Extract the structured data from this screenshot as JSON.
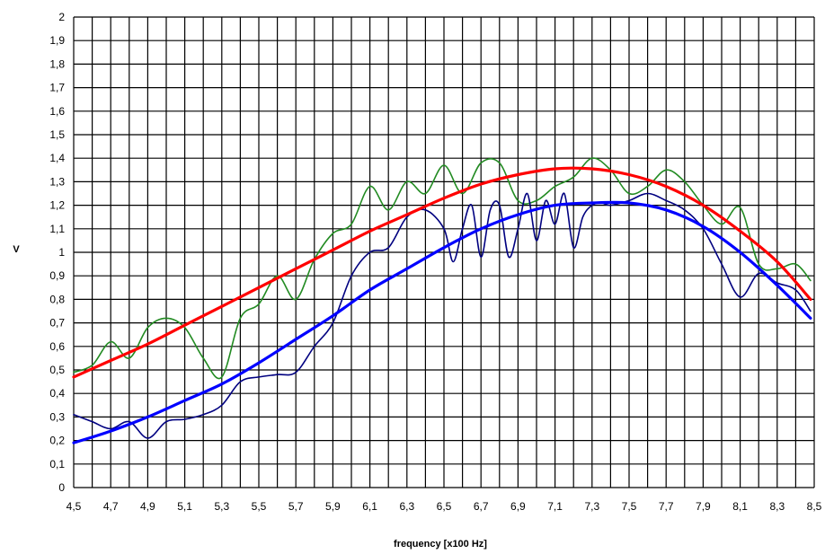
{
  "chart_data": {
    "type": "line",
    "title": "",
    "xlabel": "frequency [x100 Hz]",
    "ylabel": "V",
    "xlim": [
      4.5,
      8.5
    ],
    "ylim": [
      0,
      2
    ],
    "grid": true,
    "legend": "none",
    "x_ticks": [
      "4,5",
      "4,7",
      "4,9",
      "5,1",
      "5,3",
      "5,5",
      "5,7",
      "5,9",
      "6,1",
      "6,3",
      "6,5",
      "6,7",
      "6,9",
      "7,1",
      "7,3",
      "7,5",
      "7,7",
      "7,9",
      "8,1",
      "8,3",
      "8,5"
    ],
    "y_ticks": [
      "0",
      "0,1",
      "0,2",
      "0,3",
      "0,4",
      "0,5",
      "0,6",
      "0,7",
      "0,8",
      "0,9",
      "1",
      "1,1",
      "1,2",
      "1,3",
      "1,4",
      "1,5",
      "1,6",
      "1,7",
      "1,8",
      "1,9",
      "2"
    ],
    "series": [
      {
        "color": "#228B22",
        "width": 1.6,
        "x": [
          4.5,
          4.6,
          4.7,
          4.8,
          4.9,
          5.0,
          5.1,
          5.2,
          5.3,
          5.4,
          5.5,
          5.6,
          5.7,
          5.8,
          5.9,
          6.0,
          6.1,
          6.2,
          6.3,
          6.4,
          6.5,
          6.6,
          6.7,
          6.8,
          6.9,
          7.0,
          7.1,
          7.2,
          7.3,
          7.4,
          7.5,
          7.6,
          7.7,
          7.8,
          7.9,
          8.0,
          8.1,
          8.2,
          8.3,
          8.4,
          8.48
        ],
        "y": [
          0.49,
          0.52,
          0.62,
          0.55,
          0.68,
          0.72,
          0.68,
          0.55,
          0.47,
          0.72,
          0.78,
          0.9,
          0.8,
          0.97,
          1.08,
          1.12,
          1.28,
          1.18,
          1.3,
          1.25,
          1.37,
          1.25,
          1.38,
          1.38,
          1.22,
          1.22,
          1.28,
          1.32,
          1.4,
          1.35,
          1.25,
          1.28,
          1.35,
          1.3,
          1.2,
          1.12,
          1.19,
          0.95,
          0.93,
          0.95,
          0.88
        ]
      },
      {
        "color": "#000080",
        "width": 1.6,
        "x": [
          4.5,
          4.6,
          4.7,
          4.8,
          4.9,
          5.0,
          5.1,
          5.2,
          5.3,
          5.4,
          5.5,
          5.6,
          5.7,
          5.8,
          5.9,
          6.0,
          6.1,
          6.2,
          6.3,
          6.4,
          6.5,
          6.55,
          6.6,
          6.65,
          6.7,
          6.75,
          6.8,
          6.85,
          6.9,
          6.95,
          7.0,
          7.05,
          7.1,
          7.15,
          7.2,
          7.25,
          7.3,
          7.35,
          7.4,
          7.5,
          7.6,
          7.7,
          7.8,
          7.9,
          8.0,
          8.1,
          8.2,
          8.3,
          8.4,
          8.48
        ],
        "y": [
          0.31,
          0.28,
          0.25,
          0.28,
          0.21,
          0.28,
          0.29,
          0.31,
          0.35,
          0.45,
          0.47,
          0.48,
          0.49,
          0.6,
          0.7,
          0.9,
          1.0,
          1.02,
          1.15,
          1.18,
          1.1,
          0.96,
          1.1,
          1.2,
          0.98,
          1.18,
          1.2,
          0.98,
          1.1,
          1.25,
          1.05,
          1.22,
          1.12,
          1.25,
          1.02,
          1.15,
          1.2,
          1.21,
          1.2,
          1.22,
          1.25,
          1.22,
          1.18,
          1.1,
          0.95,
          0.81,
          0.91,
          0.87,
          0.84,
          0.75
        ]
      },
      {
        "color": "#FF0000",
        "width": 3.2,
        "x": [
          4.5,
          4.7,
          4.9,
          5.1,
          5.3,
          5.5,
          5.7,
          5.9,
          6.1,
          6.3,
          6.5,
          6.7,
          6.9,
          7.1,
          7.3,
          7.5,
          7.7,
          7.9,
          8.1,
          8.3,
          8.48
        ],
        "y": [
          0.47,
          0.54,
          0.61,
          0.69,
          0.77,
          0.85,
          0.93,
          1.01,
          1.09,
          1.16,
          1.23,
          1.29,
          1.33,
          1.355,
          1.355,
          1.33,
          1.28,
          1.2,
          1.09,
          0.96,
          0.8
        ]
      },
      {
        "color": "#0000FF",
        "width": 3.2,
        "x": [
          4.5,
          4.7,
          4.9,
          5.1,
          5.3,
          5.5,
          5.7,
          5.9,
          6.1,
          6.3,
          6.5,
          6.7,
          6.9,
          7.1,
          7.3,
          7.5,
          7.7,
          7.9,
          8.1,
          8.3,
          8.48
        ],
        "y": [
          0.19,
          0.24,
          0.3,
          0.37,
          0.44,
          0.53,
          0.63,
          0.73,
          0.84,
          0.93,
          1.02,
          1.1,
          1.16,
          1.2,
          1.21,
          1.21,
          1.18,
          1.11,
          1.0,
          0.86,
          0.72
        ]
      }
    ]
  }
}
